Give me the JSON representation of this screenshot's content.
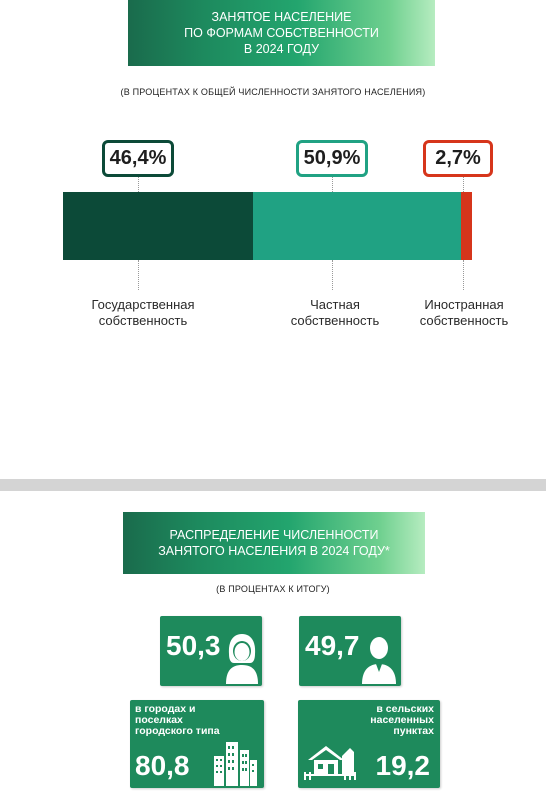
{
  "section1": {
    "banner_lines": [
      "ЗАНЯТОЕ НАСЕЛЕНИЕ",
      "ПО ФОРМАМ СОБСТВЕННОСТИ",
      "В 2024 ГОДУ"
    ],
    "subtitle": "(В ПРОЦЕНТАХ К ОБЩЕЙ ЧИСЛЕННОСТИ ЗАНЯТОГО НАСЕЛЕНИЯ)"
  },
  "chart_data": {
    "type": "bar",
    "orientation": "horizontal-stacked",
    "categories": [
      "Государственная собственность",
      "Частная собственность",
      "Иностранная собственность"
    ],
    "values": [
      46.4,
      50.9,
      2.7
    ],
    "value_labels": [
      "46,4%",
      "50,9%",
      "2,7%"
    ],
    "category_labels": [
      [
        "Государственная",
        "собственность"
      ],
      [
        "Частная",
        "собственность"
      ],
      [
        "Иностранная",
        "собственность"
      ]
    ],
    "colors": [
      "#0c4a38",
      "#20a283",
      "#d6351b"
    ],
    "total": 100
  },
  "section2": {
    "banner_lines": [
      "РАСПРЕДЕЛЕНИЕ ЧИСЛЕННОСТИ",
      "ЗАНЯТОГО НАСЕЛЕНИЯ В 2024 ГОДУ*"
    ],
    "subtitle": "(В ПРОЦЕНТАХ К ИТОГУ)",
    "female_value": "50,3",
    "male_value": "49,7",
    "urban_label_lines": [
      "в городах и",
      "поселках",
      "городского типа"
    ],
    "urban_value": "80,8",
    "rural_label_lines": [
      "в сельских",
      "населенных",
      "пунктах"
    ],
    "rural_value": "19,2",
    "icons": [
      "female-avatar-icon",
      "male-avatar-icon",
      "city-buildings-icon",
      "village-house-icon"
    ],
    "tile_color": "#1e8a5c"
  }
}
